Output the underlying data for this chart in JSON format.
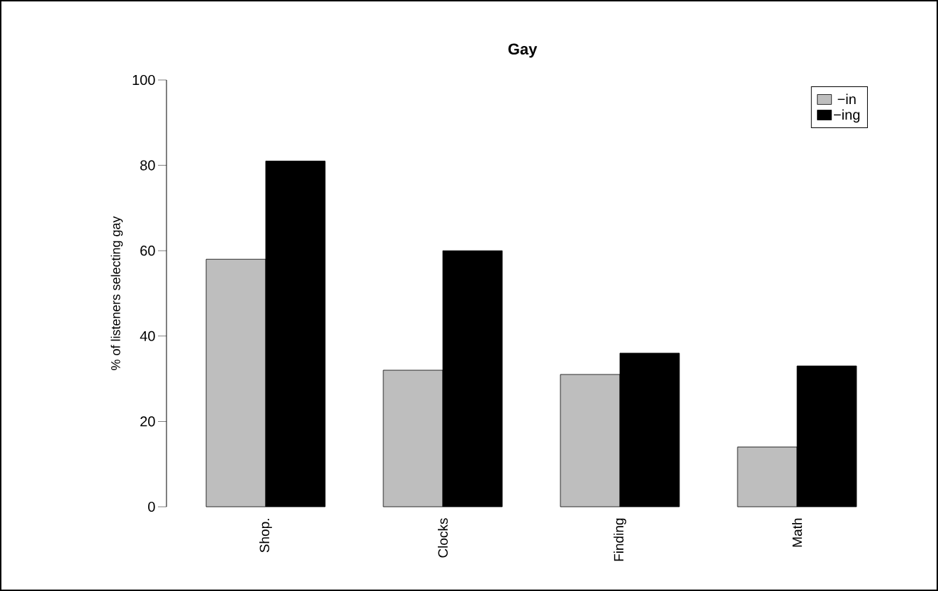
{
  "chart_data": {
    "type": "bar",
    "title": "Gay",
    "ylabel": "%  of listeners selecting gay",
    "categories": [
      "Shop.",
      "Clocks",
      "Finding",
      "Math"
    ],
    "series": [
      {
        "name": "−in",
        "color": "#bebebe",
        "values": [
          58,
          32,
          31,
          14
        ]
      },
      {
        "name": "−ing",
        "color": "#000000",
        "values": [
          81,
          60,
          36,
          33
        ]
      }
    ],
    "ylim": [
      0,
      100
    ],
    "yticks": [
      0,
      20,
      40,
      60,
      80,
      100
    ],
    "grid": false,
    "legend": "top right"
  }
}
